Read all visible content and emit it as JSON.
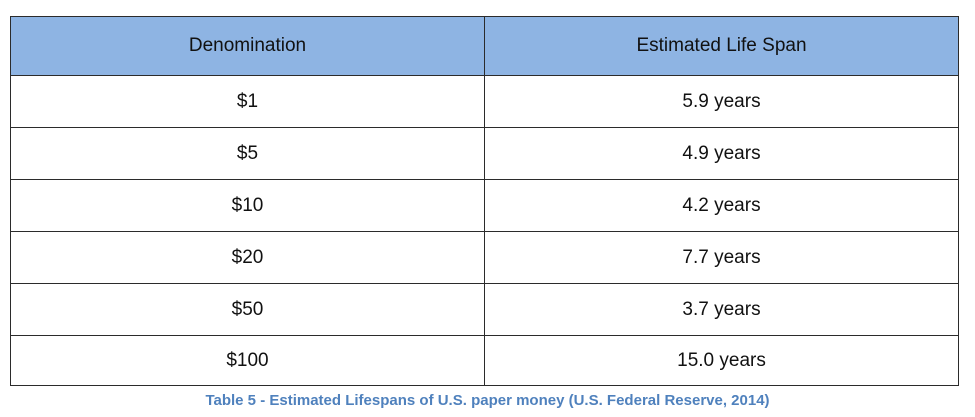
{
  "table": {
    "headers": [
      "Denomination",
      "Estimated Life Span"
    ],
    "rows": [
      [
        "$1",
        "5.9 years"
      ],
      [
        "$5",
        "4.9 years"
      ],
      [
        "$10",
        "4.2 years"
      ],
      [
        "$20",
        "7.7 years"
      ],
      [
        "$50",
        "3.7 years"
      ],
      [
        "$100",
        "15.0 years"
      ]
    ],
    "header_background": "#8eb4e3",
    "border_color": "#2b2b2b"
  },
  "caption": "Table 5 - Estimated Lifespans of U.S. paper money (U.S. Federal Reserve, 2014)",
  "caption_color": "#4f81bd"
}
